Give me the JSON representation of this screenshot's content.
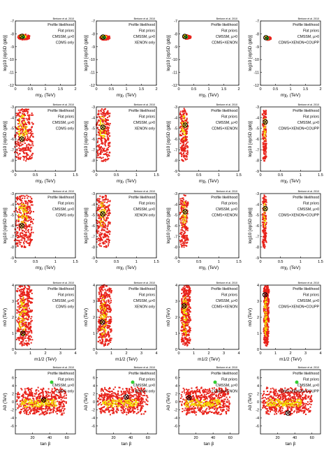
{
  "credit": "Bertone et al. 2010",
  "legend_colors": {
    "outer": "#e8221a",
    "mid": "#f4e000",
    "inner": "#ffe87a"
  },
  "columns": [
    {
      "lines": [
        "Profile likelihood",
        "Flat priors",
        "CMSSM, μ>0",
        "CDMS only"
      ]
    },
    {
      "lines": [
        "Profile likelihood",
        "Flat priors",
        "CMSSM, μ>0",
        "XENON only"
      ]
    },
    {
      "lines": [
        "Profile likelihood",
        "Flat priors",
        "CMSSM, μ>0",
        "CDMS+XENON"
      ]
    },
    {
      "lines": [
        "Profile likelihood",
        "Flat priors",
        "CMSSM, μ>0",
        "CDMS+XENON+COUPP"
      ]
    }
  ],
  "rows": [
    {
      "type": "sigma",
      "xlabel": "mχ₁ (TeV)",
      "ylabel": "log10 [σpSD (pb)]",
      "xlim": [
        0,
        2
      ],
      "ylim": [
        -12,
        -7
      ],
      "xticks": [
        "0",
        "0.5",
        "1",
        "1.5",
        "2"
      ],
      "yticks": [
        "-7",
        "-8",
        "-9",
        "-10",
        "-11",
        "-12"
      ]
    },
    {
      "type": "sigma",
      "xlabel": "mχ₁ (TeV)",
      "ylabel": "log10 [σpSD (pb)]",
      "xlim": [
        0,
        1.5
      ],
      "ylim": [
        -9,
        -3
      ],
      "xticks": [
        "0",
        "0.5",
        "1",
        "1.5"
      ],
      "yticks": [
        "-3",
        "-4",
        "-5",
        "-6",
        "-7",
        "-8",
        "-9"
      ]
    },
    {
      "type": "sigma",
      "xlabel": "mχ₁ (TeV)",
      "ylabel": "log10 [σpSD (pb)]",
      "xlim": [
        0,
        1.5
      ],
      "ylim": [
        -9,
        -3
      ],
      "xticks": [
        "0",
        "0.5",
        "1",
        "1.5"
      ],
      "yticks": [
        "-3",
        "-4",
        "-5",
        "-6",
        "-7",
        "-8",
        "-9"
      ]
    },
    {
      "type": "m0",
      "xlabel": "m1/2 (TeV)",
      "ylabel": "m0 (TeV)",
      "xlim": [
        0,
        4
      ],
      "ylim": [
        0,
        4
      ],
      "xticks": [
        "0",
        "1",
        "2",
        "3",
        "4"
      ],
      "yticks": [
        "0",
        "1",
        "2",
        "3",
        "4"
      ]
    },
    {
      "type": "a0",
      "xlabel": "tan β",
      "ylabel": "A0 (TeV)",
      "xlim": [
        0,
        70
      ],
      "ylim": [
        -8,
        8
      ],
      "xticks": [
        "20",
        "40",
        "60"
      ],
      "yticks": [
        "6",
        "4",
        "2",
        "0",
        "-2",
        "-4",
        "-6"
      ]
    }
  ],
  "chart_data": {
    "type": "scatter",
    "title": "",
    "description_axes": "5 rows × 4 columns of 2D profile-likelihood credible regions",
    "best_fit": [
      [
        {
          "x": 0.22,
          "y": -8.2
        },
        {
          "x": 0.22,
          "y": -8.25
        },
        {
          "x": 0.2,
          "y": -8.2
        },
        {
          "x": 0.18,
          "y": -8.3
        }
      ],
      [
        {
          "x": 0.16,
          "y": -6.0
        },
        {
          "x": 0.16,
          "y": -4.9
        },
        {
          "x": 0.16,
          "y": -4.7
        },
        {
          "x": 0.12,
          "y": -4.4
        }
      ],
      [
        {
          "x": 0.16,
          "y": -6.0
        },
        {
          "x": 0.16,
          "y": -4.9
        },
        {
          "x": 0.16,
          "y": -4.7
        },
        {
          "x": 0.12,
          "y": -4.4
        }
      ],
      [
        {
          "x": 0.5,
          "y": 1.0
        },
        {
          "x": 0.4,
          "y": 1.7
        },
        {
          "x": 0.35,
          "y": 2.7
        },
        {
          "x": 0.3,
          "y": 3.4
        }
      ],
      [
        {
          "x": 33,
          "y": 0.5
        },
        {
          "x": 35,
          "y": 1.2
        },
        {
          "x": 12,
          "y": 1.0
        },
        {
          "x": 32,
          "y": -2.8
        }
      ]
    ]
  }
}
